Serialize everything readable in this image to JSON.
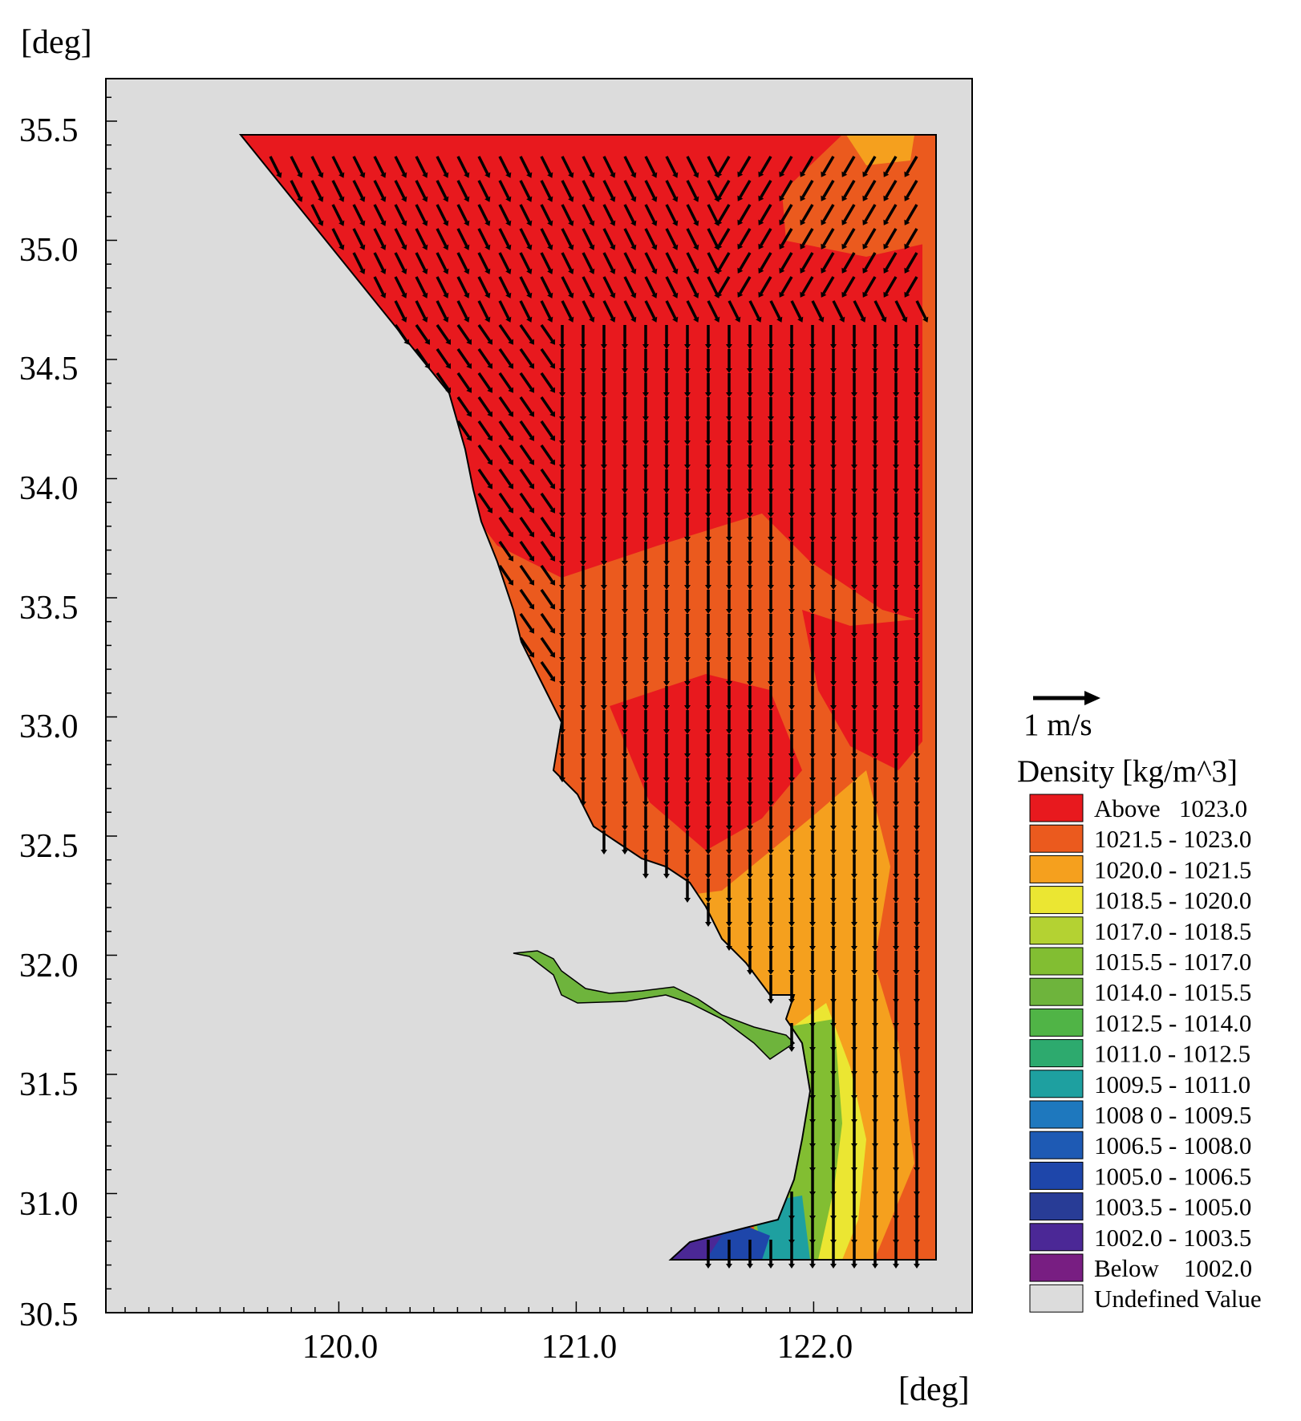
{
  "map": {
    "y_unit_label": "[deg]",
    "x_unit_label": "[deg]",
    "y_ticks": [
      "35.5",
      "35.0",
      "34.5",
      "34.0",
      "33.5",
      "33.0",
      "32.5",
      "32.0",
      "31.5",
      "31.0",
      "30.5"
    ],
    "x_ticks": [
      "120.0",
      "121.0",
      "122.0"
    ],
    "axis_range": {
      "lon": [
        119.0,
        122.65
      ],
      "lat": [
        30.5,
        35.7
      ]
    },
    "land_color": "#dcdcdc"
  },
  "scale": {
    "label": "1 m/s"
  },
  "legend": {
    "title": "Density [kg/m^3]",
    "items": [
      {
        "label": "Above   1023.0",
        "color": "#e8191e"
      },
      {
        "label": "1021.5 - 1023.0",
        "color": "#eb5a1e"
      },
      {
        "label": "1020.0 - 1021.5",
        "color": "#f5a01e"
      },
      {
        "label": "1018.5 - 1020.0",
        "color": "#ebe632"
      },
      {
        "label": "1017.0 - 1018.5",
        "color": "#b4d232"
      },
      {
        "label": "1015.5 - 1017.0",
        "color": "#82be32"
      },
      {
        "label": "1014.0 - 1015.5",
        "color": "#6eb43c"
      },
      {
        "label": "1012.5 - 1014.0",
        "color": "#50b446"
      },
      {
        "label": "1011.0 - 1012.5",
        "color": "#2daa6e"
      },
      {
        "label": "1009.5 - 1011.0",
        "color": "#1ea0a0"
      },
      {
        "label": "1008 0 - 1009.5",
        "color": "#1e78be"
      },
      {
        "label": "1006.5 - 1008.0",
        "color": "#1e5ab4"
      },
      {
        "label": "1005.0 - 1006.5",
        "color": "#1e46aa"
      },
      {
        "label": "1003.5 - 1005.0",
        "color": "#283c96"
      },
      {
        "label": "1002.0 - 1003.5",
        "color": "#4b2896"
      },
      {
        "label": "Below    1002.0",
        "color": "#781e82"
      },
      {
        "label": "Undefined Value",
        "color": "#dcdcdc"
      }
    ]
  }
}
